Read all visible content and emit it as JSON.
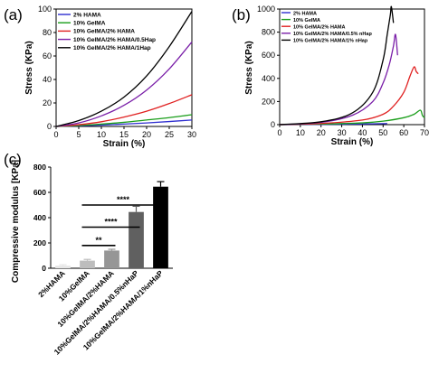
{
  "chart_data": [
    {
      "panel": "(a)",
      "type": "line",
      "xlabel": "Strain (%)",
      "ylabel": "Stress (KPa)",
      "xlim": [
        0,
        30
      ],
      "ylim": [
        0,
        100
      ],
      "xticks": [
        0,
        5,
        10,
        15,
        20,
        25,
        30
      ],
      "yticks": [
        0,
        20,
        40,
        60,
        80,
        100
      ],
      "legend_position": "top-left",
      "series": [
        {
          "name": "2% HAMA",
          "color": "#2e2ed0",
          "x": [
            0,
            5,
            10,
            15,
            20,
            25,
            30
          ],
          "y": [
            0,
            0.5,
            1.2,
            2,
            3,
            4.2,
            5.5
          ]
        },
        {
          "name": "10% GelMA",
          "color": "#1a9e1a",
          "x": [
            0,
            5,
            10,
            15,
            20,
            25,
            30
          ],
          "y": [
            0,
            0.8,
            2,
            3.5,
            5.5,
            7.5,
            10
          ]
        },
        {
          "name": "10% GelMA/2% HAMA",
          "color": "#e02020",
          "x": [
            0,
            5,
            10,
            15,
            20,
            25,
            30
          ],
          "y": [
            0,
            1.5,
            4,
            8,
            13,
            19.5,
            27
          ]
        },
        {
          "name": "10% GelMA/2% HAMA/0.5Hap",
          "color": "#7a1fa8",
          "x": [
            0,
            5,
            10,
            15,
            20,
            25,
            30
          ],
          "y": [
            0,
            3,
            9,
            18,
            31,
            49,
            72
          ]
        },
        {
          "name": "10% GelMA/2% HAMA/1Hap",
          "color": "#000000",
          "x": [
            0,
            5,
            10,
            15,
            20,
            25,
            30
          ],
          "y": [
            0,
            5,
            13,
            25,
            43,
            68,
            98
          ]
        }
      ]
    },
    {
      "panel": "(b)",
      "type": "line",
      "xlabel": "Strain (%)",
      "ylabel": "Stress (KPa)",
      "xlim": [
        0,
        70
      ],
      "ylim": [
        0,
        1000
      ],
      "xticks": [
        0,
        10,
        20,
        30,
        40,
        50,
        60,
        70
      ],
      "yticks": [
        0,
        200,
        400,
        600,
        800,
        1000
      ],
      "legend_position": "top-left",
      "series": [
        {
          "name": "2% HAMA",
          "color": "#2e2ed0",
          "x": [
            0,
            10,
            20,
            30,
            40,
            50,
            52
          ],
          "y": [
            0,
            0,
            2,
            4,
            6,
            9,
            10
          ]
        },
        {
          "name": "10% GelMA",
          "color": "#1a9e1a",
          "x": [
            0,
            20,
            40,
            50,
            60,
            65,
            68,
            69,
            70
          ],
          "y": [
            0,
            5,
            15,
            30,
            60,
            90,
            125,
            80,
            60
          ]
        },
        {
          "name": "10% GelMA/2% HAMA",
          "color": "#e02020",
          "x": [
            0,
            20,
            40,
            50,
            55,
            60,
            63,
            65,
            66,
            67
          ],
          "y": [
            0,
            10,
            40,
            90,
            160,
            280,
            420,
            500,
            460,
            440
          ]
        },
        {
          "name": "10% GelMA/2% HAMA/0.5% nHap",
          "color": "#7a1fa8",
          "x": [
            0,
            20,
            35,
            45,
            50,
            53,
            55,
            56,
            57
          ],
          "y": [
            0,
            20,
            80,
            200,
            360,
            520,
            680,
            780,
            600
          ]
        },
        {
          "name": "10% GelMA/2% HAMA/1% nHap",
          "color": "#000000",
          "x": [
            0,
            20,
            35,
            45,
            50,
            52,
            53.5,
            54,
            55
          ],
          "y": [
            0,
            25,
            100,
            280,
            560,
            780,
            950,
            1020,
            880
          ]
        }
      ]
    },
    {
      "panel": "(c)",
      "type": "bar",
      "ylabel": "Compressive modulus [KPa]",
      "ylim": [
        0,
        800
      ],
      "yticks": [
        0,
        200,
        400,
        600,
        800
      ],
      "categories": [
        "2%HAMA",
        "10%GelMA",
        "10%GelMA/2%HAMA",
        "10%GelMA/2%HAMA/0.5%nHaP",
        "10%GelMA/2%HAMA/1%nHaP"
      ],
      "values": [
        20,
        60,
        140,
        445,
        645
      ],
      "errors": [
        8,
        10,
        10,
        45,
        40
      ],
      "colors": [
        "#e6e6e6",
        "#bdbdbd",
        "#969696",
        "#606060",
        "#000000"
      ],
      "significance": [
        {
          "from": 1,
          "to": 2,
          "label": "**"
        },
        {
          "from": 1,
          "to": 3,
          "label": "****"
        },
        {
          "from": 1,
          "to": 4,
          "label": "****"
        }
      ]
    }
  ]
}
